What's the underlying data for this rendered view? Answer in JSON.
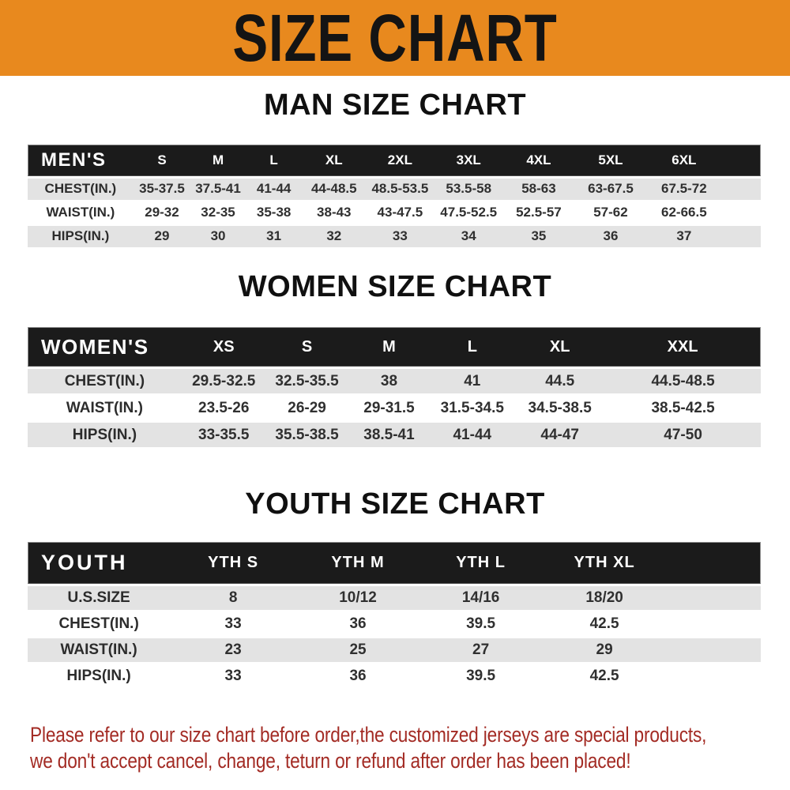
{
  "banner": {
    "title": "SIZE CHART"
  },
  "colors": {
    "banner_bg": "#E8891E",
    "table_header_bg": "#1B1B1B",
    "row_stripe": "#E3E3E3",
    "notice_text": "#A32B24"
  },
  "sections": [
    {
      "heading": "MAN SIZE CHART",
      "table": {
        "header": [
          "MEN'S",
          "S",
          "M",
          "L",
          "XL",
          "2XL",
          "3XL",
          "4XL",
          "5XL",
          "6XL"
        ],
        "rows": [
          {
            "label": "CHEST(IN.)",
            "values": [
              "35-37.5",
              "37.5-41",
              "41-44",
              "44-48.5",
              "48.5-53.5",
              "53.5-58",
              "58-63",
              "63-67.5",
              "67.5-72"
            ]
          },
          {
            "label": "WAIST(IN.)",
            "values": [
              "29-32",
              "32-35",
              "35-38",
              "38-43",
              "43-47.5",
              "47.5-52.5",
              "52.5-57",
              "57-62",
              "62-66.5"
            ]
          },
          {
            "label": "HIPS(IN.)",
            "values": [
              "29",
              "30",
              "31",
              "32",
              "33",
              "34",
              "35",
              "36",
              "37"
            ]
          }
        ]
      }
    },
    {
      "heading": "WOMEN SIZE CHART",
      "table": {
        "header": [
          "WOMEN'S",
          "XS",
          "S",
          "M",
          "L",
          "XL",
          "XXL"
        ],
        "rows": [
          {
            "label": "CHEST(IN.)",
            "values": [
              "29.5-32.5",
              "32.5-35.5",
              "38",
              "41",
              "44.5",
              "44.5-48.5"
            ]
          },
          {
            "label": "WAIST(IN.)",
            "values": [
              "23.5-26",
              "26-29",
              "29-31.5",
              "31.5-34.5",
              "34.5-38.5",
              "38.5-42.5"
            ]
          },
          {
            "label": "HIPS(IN.)",
            "values": [
              "33-35.5",
              "35.5-38.5",
              "38.5-41",
              "41-44",
              "44-47",
              "47-50"
            ]
          }
        ]
      }
    },
    {
      "heading": "YOUTH SIZE CHART",
      "table": {
        "header": [
          "YOUTH",
          "YTH S",
          "YTH M",
          "YTH L",
          "YTH XL"
        ],
        "rows": [
          {
            "label": "U.S.SIZE",
            "values": [
              "8",
              "10/12",
              "14/16",
              "18/20"
            ]
          },
          {
            "label": "CHEST(IN.)",
            "values": [
              "33",
              "36",
              "39.5",
              "42.5"
            ]
          },
          {
            "label": "WAIST(IN.)",
            "values": [
              "23",
              "25",
              "27",
              "29"
            ]
          },
          {
            "label": "HIPS(IN.)",
            "values": [
              "33",
              "36",
              "39.5",
              "42.5"
            ]
          }
        ]
      }
    }
  ],
  "footer": {
    "lines": [
      "Please refer to our size chart before order,the customized jerseys are special products,",
      "we don't accept cancel, change, teturn or refund after order has been placed!"
    ]
  }
}
